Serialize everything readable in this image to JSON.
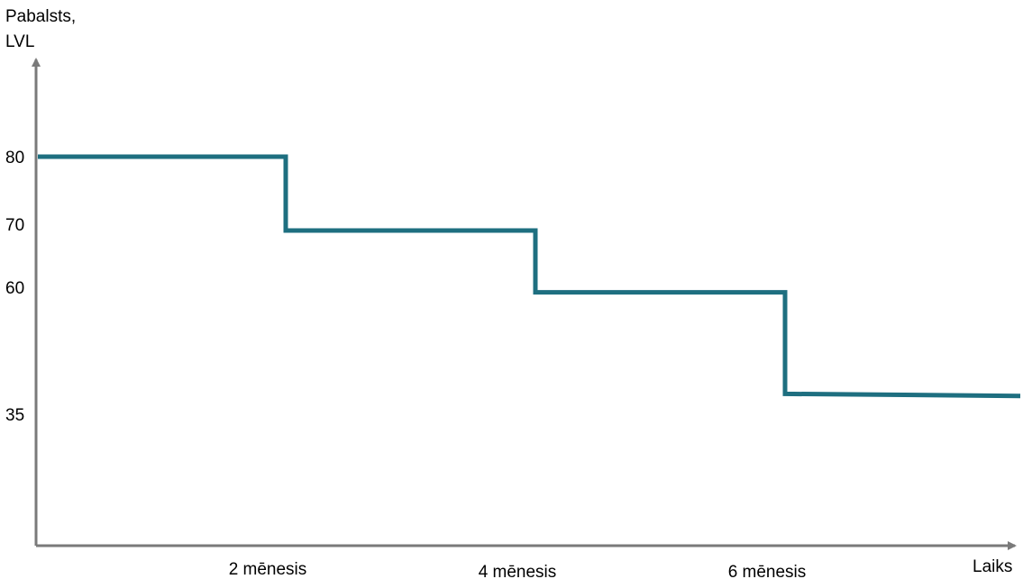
{
  "colors": {
    "axis": "#7a7a7a",
    "series": "#1e6f80"
  },
  "chart_data": {
    "type": "line",
    "step": true,
    "ylabel_lines": [
      "Pabalsts,",
      "LVL"
    ],
    "xlabel": "Laiks",
    "y_ticks": [
      80,
      70,
      60,
      35
    ],
    "x_ticks": [
      {
        "label": "2 mēnesis",
        "value": 2
      },
      {
        "label": "4 mēnesis",
        "value": 4
      },
      {
        "label": "6 mēnesis",
        "value": 6
      }
    ],
    "series": [
      {
        "points": [
          {
            "x": 0,
            "y": 80
          },
          {
            "x": 2,
            "y": 80
          },
          {
            "x": 2,
            "y": 69
          },
          {
            "x": 4,
            "y": 69
          },
          {
            "x": 4,
            "y": 59
          },
          {
            "x": 6,
            "y": 59
          },
          {
            "x": 6,
            "y": 39
          },
          {
            "x": 8,
            "y": 38.6
          }
        ]
      }
    ]
  }
}
